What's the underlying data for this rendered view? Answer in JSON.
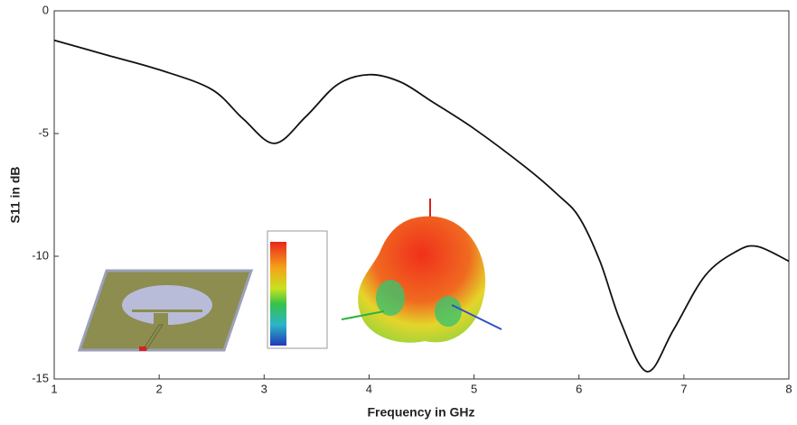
{
  "chart_data": {
    "type": "line",
    "x_label": "Frequency in GHz",
    "y_label": "S11 in dB",
    "x": [
      1,
      1.5,
      2,
      2.5,
      2.8,
      3.1,
      3.4,
      3.7,
      4.0,
      4.3,
      4.6,
      5.0,
      5.5,
      5.8,
      6.0,
      6.2,
      6.4,
      6.65,
      6.9,
      7.2,
      7.5,
      7.7,
      8.0
    ],
    "values": [
      -1.2,
      -1.8,
      -2.4,
      -3.2,
      -4.4,
      -5.4,
      -4.3,
      -3.0,
      -2.6,
      -2.9,
      -3.7,
      -4.8,
      -6.4,
      -7.5,
      -8.4,
      -10.2,
      -12.7,
      -14.7,
      -13.0,
      -10.8,
      -9.8,
      -9.6,
      -10.2
    ],
    "color": "#111111",
    "xlim": [
      1,
      8
    ],
    "xticks": [
      1,
      2,
      3,
      4,
      5,
      6,
      7,
      8
    ],
    "ylim": [
      -15,
      0
    ],
    "yticks": [
      0,
      -5,
      -10,
      -15
    ]
  }
}
